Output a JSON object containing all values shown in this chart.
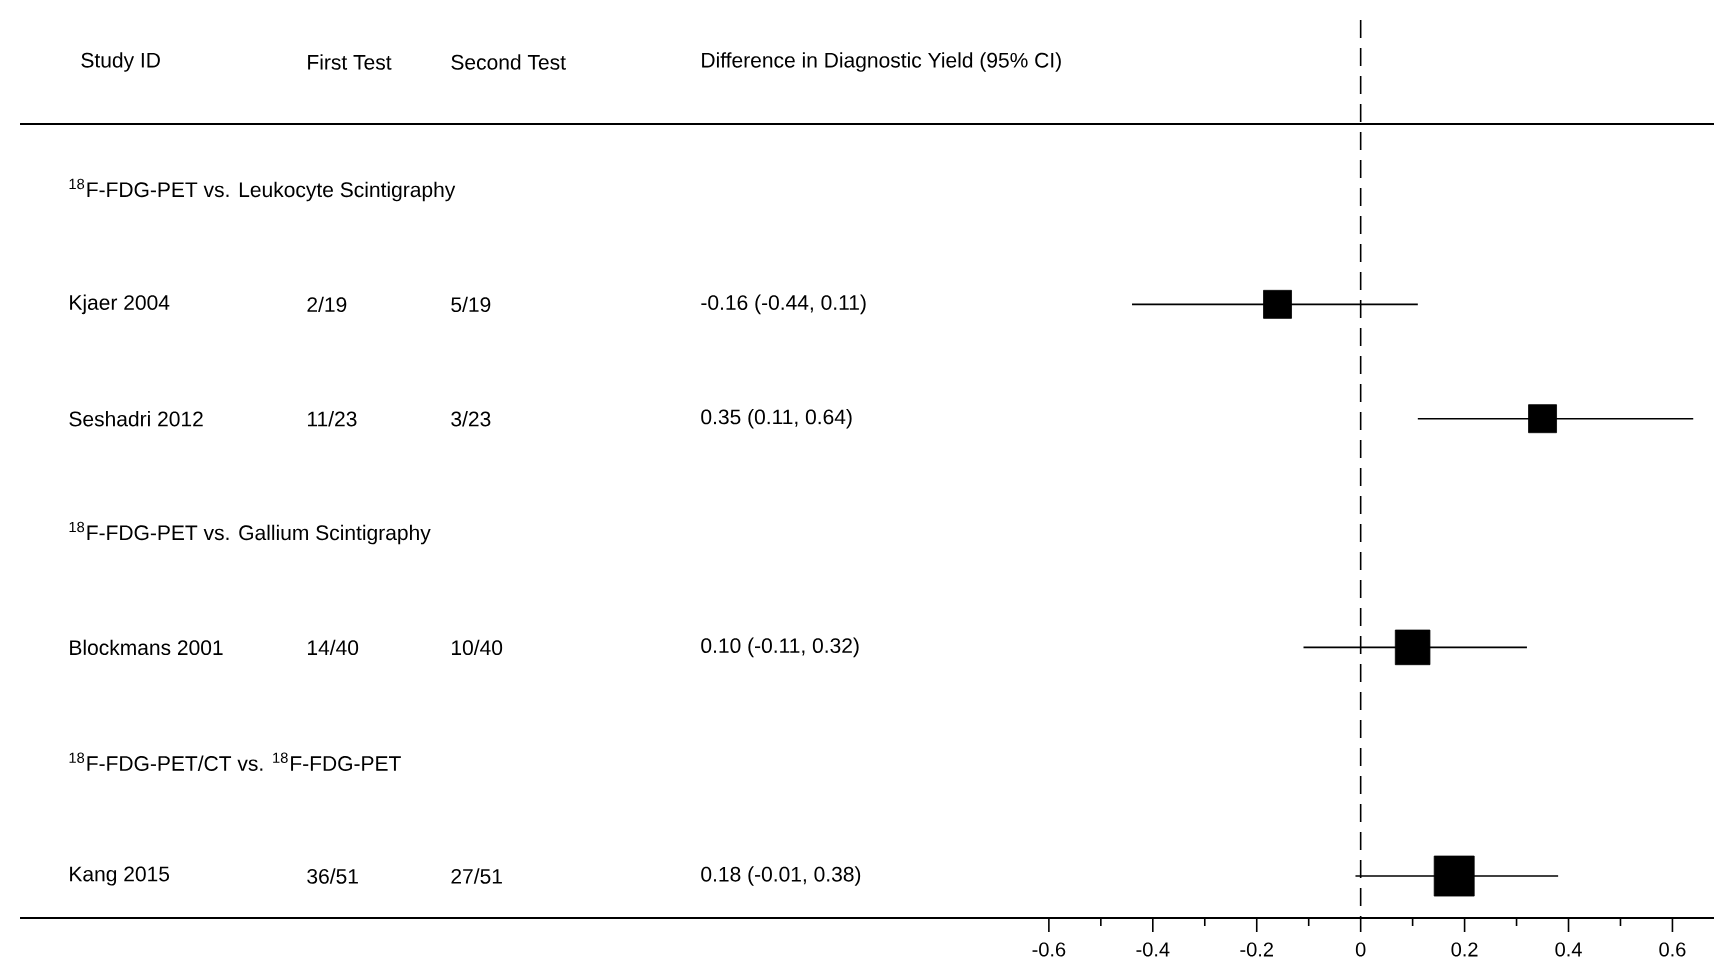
{
  "chart_data": {
    "type": "bubble",
    "marker": "square",
    "orientation": "horizontal",
    "categories": [
      "$^{18}$F-FDG-PET vs. Leukocyte Scintigraphy",
      "Kjaer 2004",
      "Seshadri 2012",
      "$^{18}$F-FDG-PET vs. Gallium Scintigraphy",
      "Blockmans 2001",
      "$^{18}$F-FDG-PET/CT vs. $^{18}$F-FDG-PET",
      "Kang 2015"
    ],
    "values": [
      null,
      -0.16,
      0.35,
      null,
      0.1,
      null,
      0.18
    ],
    "errors": [
      null,
      [
        -0.44,
        0.11
      ],
      [
        0.11,
        0.64
      ],
      null,
      [
        -0.11,
        0.32
      ],
      null,
      [
        -0.01,
        0.38
      ]
    ],
    "sizes": [
      null,
      0.49,
      0.49,
      null,
      0.75,
      null,
      1
    ],
    "color": "#000000",
    "xlim": [
      -2.58,
      0.68
    ],
    "xticks": [
      -0.6,
      {
        "value": -0.5,
        "label": null
      },
      -0.4,
      {
        "value": -0.3,
        "label": null
      },
      -0.2,
      {
        "value": -0.1,
        "label": null
      },
      0,
      {
        "value": 0.1,
        "label": null
      },
      0.2,
      {
        "value": 0.3,
        "label": null
      },
      0.4,
      {
        "value": 0.5,
        "label": null
      },
      0.6
    ],
    "ref_lines": [
      {
        "axis": "x",
        "value": 0,
        "line_style": "dashed"
      }
    ],
    "annotations": [
      "Study ID",
      "First Test",
      "Second Test",
      "Difference in Diagnostic Yield (95% CI)",
      "2/19",
      "5/19",
      "-0.16 (-0.44, 0.11)",
      "11/23",
      "3/23",
      "0.35 (0.11, 0.64)",
      "14/40",
      "10/40",
      "0.10 (-0.11, 0.32)",
      "36/51",
      "27/51",
      "0.18 (-0.01, 0.38)"
    ]
  }
}
